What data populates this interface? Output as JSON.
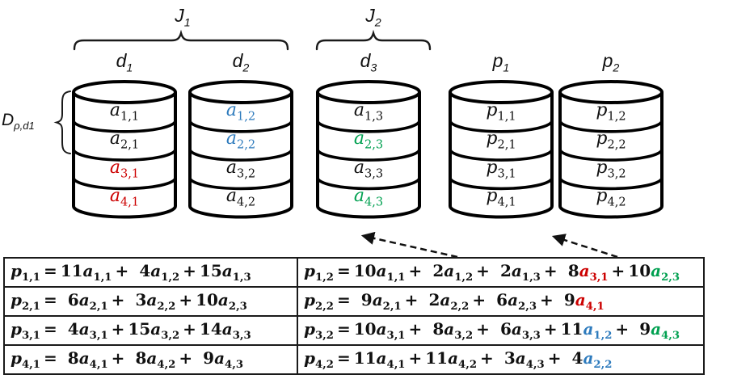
{
  "groups": [
    {
      "label": "J",
      "sub": "1"
    },
    {
      "label": "J",
      "sub": "2"
    }
  ],
  "side_label": {
    "base": "D",
    "sub": "ρ,d1"
  },
  "colors": {
    "black": "#111111",
    "red": "#cc0000",
    "blue": "#2e7bbd",
    "green": "#00a050"
  },
  "disks": [
    {
      "header": {
        "base": "d",
        "sub": "1"
      },
      "cells": [
        {
          "base": "a",
          "sub": "1,1",
          "color": "black"
        },
        {
          "base": "a",
          "sub": "2,1",
          "color": "black"
        },
        {
          "base": "a",
          "sub": "3,1",
          "color": "red"
        },
        {
          "base": "a",
          "sub": "4,1",
          "color": "red"
        }
      ]
    },
    {
      "header": {
        "base": "d",
        "sub": "2"
      },
      "cells": [
        {
          "base": "a",
          "sub": "1,2",
          "color": "blue"
        },
        {
          "base": "a",
          "sub": "2,2",
          "color": "blue"
        },
        {
          "base": "a",
          "sub": "3,2",
          "color": "black"
        },
        {
          "base": "a",
          "sub": "4,2",
          "color": "black"
        }
      ]
    },
    {
      "header": {
        "base": "d",
        "sub": "3"
      },
      "cells": [
        {
          "base": "a",
          "sub": "1,3",
          "color": "black"
        },
        {
          "base": "a",
          "sub": "2,3",
          "color": "green"
        },
        {
          "base": "a",
          "sub": "3,3",
          "color": "black"
        },
        {
          "base": "a",
          "sub": "4,3",
          "color": "green"
        }
      ]
    },
    {
      "header": {
        "base": "p",
        "sub": "1"
      },
      "cells": [
        {
          "base": "p",
          "sub": "1,1",
          "color": "black"
        },
        {
          "base": "p",
          "sub": "2,1",
          "color": "black"
        },
        {
          "base": "p",
          "sub": "3,1",
          "color": "black"
        },
        {
          "base": "p",
          "sub": "4,1",
          "color": "black"
        }
      ]
    },
    {
      "header": {
        "base": "p",
        "sub": "2"
      },
      "cells": [
        {
          "base": "p",
          "sub": "1,2",
          "color": "black"
        },
        {
          "base": "p",
          "sub": "2,2",
          "color": "black"
        },
        {
          "base": "p",
          "sub": "3,2",
          "color": "black"
        },
        {
          "base": "p",
          "sub": "4,2",
          "color": "black"
        }
      ]
    }
  ],
  "equations": {
    "rows": [
      {
        "left": {
          "lhs": {
            "base": "p",
            "sub": "1,1",
            "color": "black"
          },
          "terms": [
            {
              "coef": "11",
              "base": "a",
              "sub": "1,1",
              "color": "black"
            },
            {
              "coef": "4",
              "base": "a",
              "sub": "1,2",
              "color": "black"
            },
            {
              "coef": "15",
              "base": "a",
              "sub": "1,3",
              "color": "black"
            }
          ]
        },
        "right": {
          "lhs": {
            "base": "p",
            "sub": "1,2",
            "color": "black"
          },
          "terms": [
            {
              "coef": "10",
              "base": "a",
              "sub": "1,1",
              "color": "black"
            },
            {
              "coef": "2",
              "base": "a",
              "sub": "1,2",
              "color": "black"
            },
            {
              "coef": "2",
              "base": "a",
              "sub": "1,3",
              "color": "black"
            },
            {
              "coef": "8",
              "base": "a",
              "sub": "3,1",
              "color": "red"
            },
            {
              "coef": "10",
              "base": "a",
              "sub": "2,3",
              "color": "green"
            }
          ]
        }
      },
      {
        "left": {
          "lhs": {
            "base": "p",
            "sub": "2,1",
            "color": "black"
          },
          "terms": [
            {
              "coef": "6",
              "base": "a",
              "sub": "2,1",
              "color": "black"
            },
            {
              "coef": "3",
              "base": "a",
              "sub": "2,2",
              "color": "black"
            },
            {
              "coef": "10",
              "base": "a",
              "sub": "2,3",
              "color": "black"
            }
          ]
        },
        "right": {
          "lhs": {
            "base": "p",
            "sub": "2,2",
            "color": "black"
          },
          "terms": [
            {
              "coef": "9",
              "base": "a",
              "sub": "2,1",
              "color": "black"
            },
            {
              "coef": "2",
              "base": "a",
              "sub": "2,2",
              "color": "black"
            },
            {
              "coef": "6",
              "base": "a",
              "sub": "2,3",
              "color": "black"
            },
            {
              "coef": "9",
              "base": "a",
              "sub": "4,1",
              "color": "red"
            }
          ]
        }
      },
      {
        "left": {
          "lhs": {
            "base": "p",
            "sub": "3,1",
            "color": "black"
          },
          "terms": [
            {
              "coef": "4",
              "base": "a",
              "sub": "3,1",
              "color": "black"
            },
            {
              "coef": "15",
              "base": "a",
              "sub": "3,2",
              "color": "black"
            },
            {
              "coef": "14",
              "base": "a",
              "sub": "3,3",
              "color": "black"
            }
          ]
        },
        "right": {
          "lhs": {
            "base": "p",
            "sub": "3,2",
            "color": "black"
          },
          "terms": [
            {
              "coef": "10",
              "base": "a",
              "sub": "3,1",
              "color": "black"
            },
            {
              "coef": "8",
              "base": "a",
              "sub": "3,2",
              "color": "black"
            },
            {
              "coef": "6",
              "base": "a",
              "sub": "3,3",
              "color": "black"
            },
            {
              "coef": "11",
              "base": "a",
              "sub": "1,2",
              "color": "blue"
            },
            {
              "coef": "9",
              "base": "a",
              "sub": "4,3",
              "color": "green"
            }
          ]
        }
      },
      {
        "left": {
          "lhs": {
            "base": "p",
            "sub": "4,1",
            "color": "black"
          },
          "terms": [
            {
              "coef": "8",
              "base": "a",
              "sub": "4,1",
              "color": "black"
            },
            {
              "coef": "8",
              "base": "a",
              "sub": "4,2",
              "color": "black"
            },
            {
              "coef": "9",
              "base": "a",
              "sub": "4,3",
              "color": "black"
            }
          ]
        },
        "right": {
          "lhs": {
            "base": "p",
            "sub": "4,2",
            "color": "black"
          },
          "terms": [
            {
              "coef": "11",
              "base": "a",
              "sub": "4,1",
              "color": "black"
            },
            {
              "coef": "11",
              "base": "a",
              "sub": "4,2",
              "color": "black"
            },
            {
              "coef": "3",
              "base": "a",
              "sub": "4,3",
              "color": "black"
            },
            {
              "coef": "4",
              "base": "a",
              "sub": "2,2",
              "color": "blue"
            }
          ]
        }
      }
    ]
  }
}
